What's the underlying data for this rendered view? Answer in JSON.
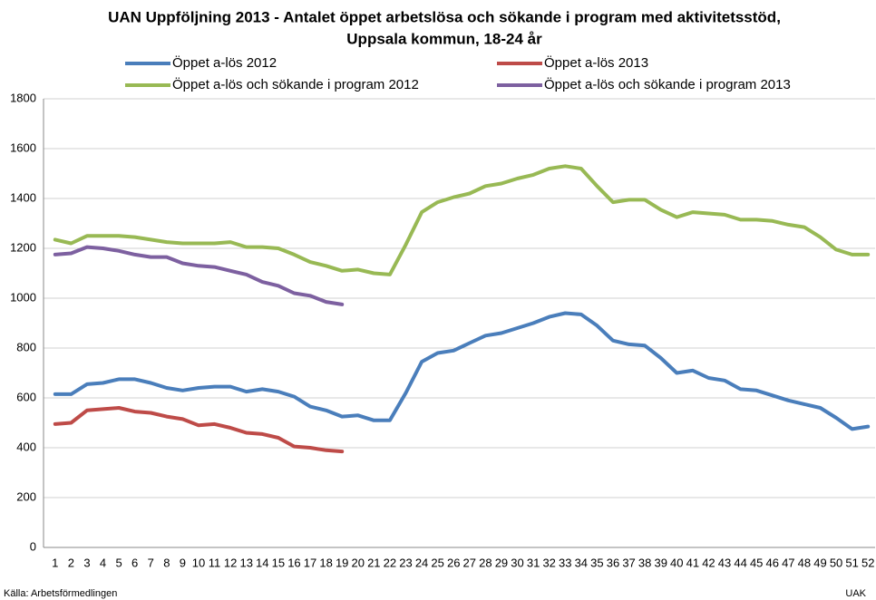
{
  "chart_data": {
    "type": "line",
    "title": [
      "UAN Uppföljning 2013 - Antalet öppet arbetslösa och sökande i program med aktivitetsstöd,",
      "Uppsala kommun, 18-24 år"
    ],
    "categories": [
      "1",
      "2",
      "3",
      "4",
      "5",
      "6",
      "7",
      "8",
      "9",
      "10",
      "11",
      "12",
      "13",
      "14",
      "15",
      "16",
      "17",
      "18",
      "19",
      "20",
      "21",
      "22",
      "23",
      "24",
      "25",
      "26",
      "27",
      "28",
      "29",
      "30",
      "31",
      "32",
      "33",
      "34",
      "35",
      "36",
      "37",
      "38",
      "39",
      "40",
      "41",
      "42",
      "43",
      "44",
      "45",
      "46",
      "47",
      "48",
      "49",
      "50",
      "51",
      "52"
    ],
    "series": [
      {
        "name": "Öppet a-lös 2012",
        "color": "#4a7ebb",
        "values": [
          615,
          615,
          655,
          660,
          675,
          675,
          660,
          640,
          630,
          640,
          645,
          645,
          625,
          635,
          625,
          605,
          565,
          550,
          525,
          530,
          510,
          510,
          620,
          745,
          780,
          790,
          820,
          850,
          860,
          880,
          900,
          925,
          940,
          935,
          890,
          830,
          815,
          810,
          760,
          700,
          710,
          680,
          670,
          635,
          630,
          610,
          590,
          575,
          560,
          520,
          475,
          485
        ]
      },
      {
        "name": "Öppet a-lös 2013",
        "color": "#be4b48",
        "values": [
          495,
          500,
          550,
          555,
          560,
          545,
          540,
          525,
          515,
          490,
          495,
          480,
          460,
          455,
          440,
          405,
          400,
          390,
          385,
          null,
          null,
          null,
          null,
          null,
          null,
          null,
          null,
          null,
          null,
          null,
          null,
          null,
          null,
          null,
          null,
          null,
          null,
          null,
          null,
          null,
          null,
          null,
          null,
          null,
          null,
          null,
          null,
          null,
          null,
          null,
          null,
          null
        ]
      },
      {
        "name": "Öppet a-lös och sökande i program 2012",
        "color": "#98b954",
        "values": [
          1235,
          1220,
          1250,
          1250,
          1250,
          1245,
          1235,
          1225,
          1220,
          1220,
          1220,
          1225,
          1205,
          1205,
          1200,
          1175,
          1145,
          1130,
          1110,
          1115,
          1100,
          1095,
          1215,
          1345,
          1385,
          1405,
          1420,
          1450,
          1460,
          1480,
          1495,
          1520,
          1530,
          1520,
          1450,
          1385,
          1395,
          1395,
          1355,
          1325,
          1345,
          1340,
          1335,
          1315,
          1315,
          1310,
          1295,
          1285,
          1245,
          1195,
          1175,
          1175
        ]
      },
      {
        "name": "Öppet a-lös och sökande i program 2013",
        "color": "#7d60a0",
        "values": [
          1175,
          1180,
          1205,
          1200,
          1190,
          1175,
          1165,
          1165,
          1140,
          1130,
          1125,
          1110,
          1095,
          1065,
          1050,
          1020,
          1010,
          985,
          975,
          null,
          null,
          null,
          null,
          null,
          null,
          null,
          null,
          null,
          null,
          null,
          null,
          null,
          null,
          null,
          null,
          null,
          null,
          null,
          null,
          null,
          null,
          null,
          null,
          null,
          null,
          null,
          null,
          null,
          null,
          null,
          null,
          null
        ]
      }
    ],
    "ylim": [
      0,
      1800
    ],
    "yticks": [
      0,
      200,
      400,
      600,
      800,
      1000,
      1200,
      1400,
      1600,
      1800
    ],
    "grid": true,
    "legend": "top",
    "source": "Källa: Arbetsförmedlingen",
    "credit": "UAK"
  }
}
